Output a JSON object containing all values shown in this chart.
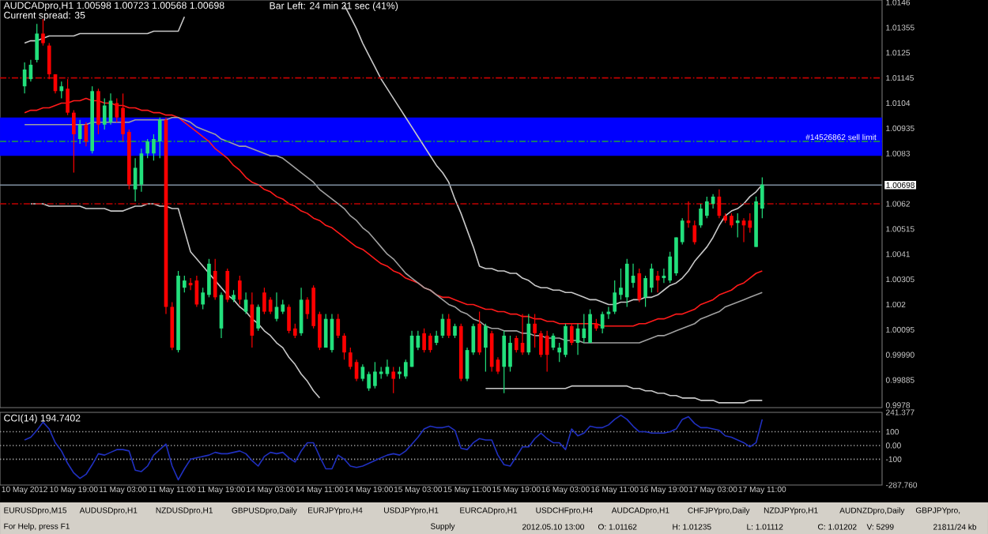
{
  "chart_data": [
    {
      "type": "candlestick",
      "title": "AUDCADpro,H1 1.00598 1.00723 1.00568 1.00698",
      "subtitle": "Current spread: 35",
      "annotations": [
        "Bar Left: 24 min 21 sec (41%)"
      ],
      "tick_labels": "y",
      "ylim": [
        0.9977,
        1.0147
      ],
      "yticks": [
        1.0146,
        1.01355,
        1.0125,
        1.01145,
        1.0104,
        1.00935,
        1.0083,
        1.0062,
        1.00515,
        1.0041,
        1.00305,
        1.002,
        1.00095,
        {
          "value": 0.9999,
          "label": "0.99990"
        },
        0.99885,
        0.9978
      ],
      "ohlc": [
        [
          1.0111,
          1.0121,
          1.0108,
          1.0118
        ],
        [
          1.0114,
          1.0122,
          1.0113,
          1.012
        ],
        [
          1.0122,
          1.0137,
          1.0121,
          1.0133
        ],
        [
          1.0133,
          1.0139,
          1.0128,
          1.0129
        ],
        [
          1.0128,
          1.0129,
          1.0114,
          1.0116
        ],
        [
          1.0116,
          1.0116,
          1.0108,
          1.0109
        ],
        [
          1.0109,
          1.0113,
          1.0106,
          1.0111
        ],
        [
          1.011,
          1.0114,
          1.0099,
          1.01
        ],
        [
          1.01,
          1.0101,
          1.0075,
          1.0091
        ],
        [
          1.0089,
          1.0097,
          1.0087,
          1.0095
        ],
        [
          1.0095,
          1.0096,
          1.0086,
          1.0088
        ],
        [
          1.0084,
          1.0111,
          1.0083,
          1.0109
        ],
        [
          1.0109,
          1.011,
          1.0091,
          1.0095
        ],
        [
          1.0095,
          1.0106,
          1.0093,
          1.0103
        ],
        [
          1.0096,
          1.0108,
          1.0095,
          1.0105
        ],
        [
          1.0104,
          1.0106,
          1.0096,
          1.0098
        ],
        [
          1.0102,
          1.0108,
          1.0088,
          1.0091
        ],
        [
          1.0092,
          1.0093,
          1.0068,
          1.007
        ],
        [
          1.0068,
          1.0081,
          1.0063,
          1.0077
        ],
        [
          1.007,
          1.0085,
          1.0067,
          1.0083
        ],
        [
          1.0083,
          1.0089,
          1.0081,
          1.0088
        ],
        [
          1.0083,
          1.0091,
          1.008,
          1.0089
        ],
        [
          1.0088,
          1.0098,
          1.0081,
          1.0097
        ],
        [
          1.0097,
          1.0098,
          1.0016,
          1.0019
        ],
        [
          1.0019,
          1.0021,
          1.0001,
          1.0002
        ],
        [
          1.0001,
          1.0034,
          1.0,
          1.0032
        ],
        [
          1.0027,
          1.0032,
          1.0025,
          1.003
        ],
        [
          1.0029,
          1.0031,
          1.0026,
          1.0028
        ],
        [
          1.003,
          1.0032,
          1.0019,
          1.002
        ],
        [
          1.002,
          1.0027,
          1.0018,
          1.0025
        ],
        [
          1.0024,
          1.0039,
          1.0023,
          1.0037
        ],
        [
          1.0034,
          1.0039,
          1.0022,
          1.0023
        ],
        [
          1.001,
          1.0025,
          1.0006,
          1.0024
        ],
        [
          1.0034,
          1.0035,
          1.0021,
          1.0022
        ],
        [
          1.0022,
          1.0026,
          1.0021,
          1.0024
        ],
        [
          1.003,
          1.0032,
          1.002,
          1.0022
        ],
        [
          1.0017,
          1.0025,
          1.0016,
          1.0022
        ],
        [
          1.002,
          1.0025,
          1.0002,
          1.0007
        ],
        [
          1.001,
          1.002,
          1.0009,
          1.0019
        ],
        [
          1.0025,
          1.0027,
          1.0016,
          1.0017
        ],
        [
          1.0022,
          1.0023,
          1.0016,
          1.0017
        ],
        [
          1.0014,
          1.0025,
          1.0013,
          1.0019
        ],
        [
          1.0017,
          1.0022,
          1.0016,
          1.002
        ],
        [
          1.0019,
          1.002,
          1.0008,
          1.0009
        ],
        [
          1.001,
          1.0012,
          1.0006,
          1.0007
        ],
        [
          1.0008,
          1.0027,
          1.0007,
          1.0022
        ],
        [
          1.0022,
          1.0023,
          1.0014,
          1.0016
        ],
        [
          1.0027,
          1.0028,
          1.001,
          1.0011
        ],
        [
          1.0016,
          1.0017,
          1.0001,
          1.0002
        ],
        [
          1.0002,
          1.0016,
          1.0002,
          1.0014
        ],
        [
          1.0001,
          1.0016,
          1.0,
          1.0014
        ],
        [
          1.0014,
          1.0016,
          1.0006,
          1.0007
        ],
        [
          1.0007,
          1.0008,
          0.9997,
          1.0
        ],
        [
          1.0,
          1.0002,
          0.9993,
          0.9994
        ],
        [
          0.9996,
          0.9997,
          0.9988,
          0.9989
        ],
        [
          0.9989,
          0.9995,
          0.9988,
          0.9994
        ],
        [
          0.9985,
          0.9992,
          0.9984,
          0.9991
        ],
        [
          0.9986,
          0.9996,
          0.9985,
          0.9992
        ],
        [
          0.9991,
          0.9994,
          0.9989,
          0.9992
        ],
        [
          0.9991,
          0.9997,
          0.999,
          0.9994
        ],
        [
          0.9992,
          0.9994,
          0.9983,
          0.9989
        ],
        [
          0.9991,
          0.9994,
          0.9989,
          0.9992
        ],
        [
          0.999,
          0.9997,
          0.9989,
          0.9996
        ],
        [
          0.9994,
          1.0009,
          0.9994,
          1.0007
        ],
        [
          1.0002,
          1.0009,
          1.0001,
          1.0007
        ],
        [
          1.0008,
          1.001,
          1.0,
          1.0001
        ],
        [
          1.0007,
          1.0008,
          1.0,
          1.0001
        ],
        [
          1.0004,
          1.0009,
          1.0003,
          1.0007
        ],
        [
          1.0007,
          1.0016,
          1.0006,
          1.0014
        ],
        [
          1.0014,
          1.0016,
          1.0006,
          1.0007
        ],
        [
          1.0007,
          1.0012,
          1.0006,
          1.0011
        ],
        [
          1.0011,
          1.0012,
          0.9988,
          0.9989
        ],
        [
          0.9989,
          1.0002,
          0.9988,
          1.0001
        ],
        [
          1.0,
          1.0012,
          0.9999,
          1.0011
        ],
        [
          1.0012,
          1.0017,
          0.9999,
          1.0
        ],
        [
          1.0002,
          1.0012,
          0.9992,
          1.0011
        ],
        [
          1.0008,
          1.0009,
          0.9992,
          0.9994
        ],
        [
          0.9997,
          0.9998,
          0.9991,
          0.9992
        ],
        [
          0.9994,
          1.0009,
          0.9983,
          1.0007
        ],
        [
          0.9994,
          1.0007,
          0.9992,
          1.0004
        ],
        [
          1.0006,
          1.0007,
          1.0,
          1.0001
        ],
        [
          1.0004,
          1.0016,
          0.9999,
          1.0
        ],
        [
          1.0,
          1.0016,
          0.9999,
          1.0012
        ],
        [
          1.0012,
          1.0016,
          1.0002,
          1.0008
        ],
        [
          1.0008,
          1.0009,
          0.9998,
          0.9999
        ],
        [
          1.0007,
          1.0009,
          0.9992,
          0.9999
        ],
        [
          1.0002,
          1.0008,
          1.0001,
          1.0007
        ],
        [
          1.0,
          1.0004,
          0.9996,
          1.0002
        ],
        [
          0.9999,
          1.0012,
          0.9998,
          1.0011
        ],
        [
          1.0011,
          1.0012,
          1.0003,
          1.0004
        ],
        [
          1.0004,
          1.0012,
          0.9999,
          1.001
        ],
        [
          1.0006,
          1.0016,
          1.0004,
          1.001
        ],
        [
          1.0004,
          1.0018,
          1.0004,
          1.0016
        ],
        [
          1.0012,
          1.0014,
          1.0009,
          1.001
        ],
        [
          1.001,
          1.0017,
          1.0008,
          1.0016
        ],
        [
          1.0016,
          1.0019,
          1.0014,
          1.0017
        ],
        [
          1.0017,
          1.003,
          1.0016,
          1.0025
        ],
        [
          1.0024,
          1.0035,
          1.0022,
          1.0027
        ],
        [
          1.0023,
          1.0039,
          1.0019,
          1.0037
        ],
        [
          1.0029,
          1.0037,
          1.0027,
          1.0032
        ],
        [
          1.0033,
          1.0035,
          1.0021,
          1.0022
        ],
        [
          1.0023,
          1.0032,
          1.0019,
          1.0031
        ],
        [
          1.0027,
          1.0037,
          1.0025,
          1.0035
        ],
        [
          1.0032,
          1.0034,
          1.0025,
          1.003
        ],
        [
          1.0031,
          1.0035,
          1.0029,
          1.0032
        ],
        [
          1.003,
          1.0042,
          1.0029,
          1.004
        ],
        [
          1.0033,
          1.0048,
          1.0032,
          1.0048
        ],
        [
          1.0046,
          1.0056,
          1.0045,
          1.0055
        ],
        [
          1.0055,
          1.0063,
          1.0052,
          1.0054
        ],
        [
          1.0053,
          1.0055,
          1.0045,
          1.0046
        ],
        [
          1.0053,
          1.0062,
          1.0052,
          1.006
        ],
        [
          1.0057,
          1.0065,
          1.0056,
          1.0063
        ],
        [
          1.0062,
          1.0066,
          1.006,
          1.0065
        ],
        [
          1.0065,
          1.0068,
          1.0056,
          1.0057
        ],
        [
          1.0057,
          1.0058,
          1.0054,
          1.0055
        ],
        [
          1.0057,
          1.0058,
          1.0052,
          1.0053
        ],
        [
          1.0054,
          1.0058,
          1.0048,
          1.0055
        ],
        [
          1.0055,
          1.0056,
          1.0046,
          1.0053
        ],
        [
          1.0055,
          1.0058,
          1.005,
          1.0052
        ],
        [
          1.0044,
          1.0065,
          1.0044,
          1.0063
        ],
        [
          1.006,
          1.0073,
          1.0056,
          1.007
        ],
        null,
        null,
        null,
        null,
        null,
        null,
        null,
        null,
        null,
        null,
        null,
        null,
        null,
        null,
        null,
        null,
        null,
        null,
        null
      ],
      "series": [
        {
          "type": "line",
          "color": "#ff1a1a",
          "values": [
            1.01,
            1.0101,
            1.0101,
            1.0102,
            1.0102,
            1.0103,
            1.0104,
            1.0104,
            1.0105,
            1.0105,
            1.0106,
            1.0105,
            1.0105,
            1.0104,
            1.0104,
            1.0103,
            1.0103,
            1.0102,
            1.0102,
            1.0101,
            1.0101,
            1.01,
            1.01,
            1.0099,
            1.0099,
            1.0098,
            1.0096,
            1.0094,
            1.0092,
            1.009,
            1.0088,
            1.0085,
            1.0083,
            1.0081,
            1.0078,
            1.0076,
            1.0073,
            1.0071,
            1.007,
            1.0068,
            1.0067,
            1.0065,
            1.0064,
            1.0062,
            1.0061,
            1.0059,
            1.0058,
            1.0056,
            1.0055,
            1.0053,
            1.0052,
            1.005,
            1.0048,
            1.0046,
            1.0044,
            1.0043,
            1.0041,
            1.0039,
            1.0037,
            1.0036,
            1.0034,
            1.0033,
            1.0031,
            1.003,
            1.0029,
            1.0027,
            1.0026,
            1.0024,
            1.0023,
            1.0023,
            1.0022,
            1.0021,
            1.002,
            1.002,
            1.0019,
            1.0018,
            1.0018,
            1.0017,
            1.0017,
            1.0016,
            1.0016,
            1.0015,
            1.0015,
            1.0014,
            1.0014,
            1.0013,
            1.0013,
            1.0012,
            1.0012,
            1.0012,
            1.0012,
            1.0012,
            1.0012,
            1.0012,
            1.0011,
            1.0011,
            1.0011,
            1.0011,
            1.0011,
            1.0011,
            1.0012,
            1.0012,
            1.0013,
            1.0014,
            1.0014,
            1.0015,
            1.0016,
            1.0016,
            1.0017,
            1.0018,
            1.002,
            1.0021,
            1.0022,
            1.0024,
            1.0025,
            1.0026,
            1.0028,
            1.0029,
            1.0031,
            1.0033,
            1.0034,
            null,
            null,
            null,
            null,
            null,
            null,
            null,
            null,
            null,
            null,
            null,
            null,
            null,
            null,
            null,
            null,
            null,
            null,
            null
          ]
        },
        {
          "type": "line",
          "color": "#a0a0a0",
          "values": [
            1.0095,
            1.0095,
            1.0095,
            1.0095,
            1.0095,
            1.0095,
            1.0095,
            1.0095,
            1.0095,
            1.0095,
            1.0095,
            1.0096,
            1.0096,
            1.0096,
            1.0096,
            1.0096,
            1.0096,
            1.0096,
            1.0097,
            1.0097,
            1.0097,
            1.0097,
            1.0097,
            1.0097,
            1.0098,
            1.0098,
            1.0097,
            1.0096,
            1.0094,
            1.0093,
            1.0092,
            1.0091,
            1.0089,
            1.0088,
            1.0087,
            1.0086,
            1.0086,
            1.0085,
            1.0084,
            1.0083,
            1.0082,
            1.0082,
            1.0081,
            1.0079,
            1.0077,
            1.0075,
            1.0073,
            1.0071,
            1.0068,
            1.0066,
            1.0064,
            1.0062,
            1.006,
            1.0057,
            1.0055,
            1.0052,
            1.005,
            1.0047,
            1.0044,
            1.0041,
            1.0039,
            1.0036,
            1.0033,
            1.0031,
            1.0029,
            1.0027,
            1.0026,
            1.0024,
            1.0022,
            1.002,
            1.0019,
            1.0017,
            1.0016,
            1.0014,
            1.0013,
            1.0011,
            1.001,
            1.001,
            1.0009,
            1.0009,
            1.0009,
            1.0008,
            1.0008,
            1.0007,
            1.0007,
            1.0006,
            1.0006,
            1.0006,
            1.0005,
            1.0005,
            1.0005,
            1.0004,
            1.0004,
            1.0004,
            1.0004,
            1.0004,
            1.0004,
            1.0004,
            1.0004,
            1.0004,
            1.0004,
            1.0005,
            1.0006,
            1.0007,
            1.0007,
            1.0008,
            1.0009,
            1.001,
            1.0011,
            1.0012,
            1.0014,
            1.0015,
            1.0016,
            1.0017,
            1.0019,
            1.002,
            1.0021,
            1.0022,
            1.0023,
            1.0024,
            1.0025,
            null,
            null,
            null,
            null,
            null,
            null,
            null,
            null,
            null,
            null,
            null,
            null,
            null,
            null,
            null,
            null,
            null,
            null,
            null
          ]
        },
        {
          "type": "line",
          "color": "#c8c8c8",
          "values": [
            1.0129,
            1.013,
            1.013,
            1.0131,
            1.0132,
            1.0132,
            1.0132,
            1.0132,
            1.0132,
            1.0133,
            1.0133,
            1.0133,
            1.0133,
            1.0133,
            1.0133,
            1.0133,
            1.0133,
            1.0133,
            1.0133,
            1.0133,
            1.0133,
            1.0134,
            1.0134,
            1.0134,
            1.0134,
            1.0134,
            1.014,
            null,
            null,
            null,
            null,
            null,
            null,
            null,
            null,
            null,
            null,
            null,
            null,
            null,
            null,
            null,
            null,
            null,
            null,
            null,
            null,
            null,
            null,
            null,
            null,
            null,
            1.0145,
            1.014,
            1.0135,
            1.0129,
            1.0124,
            1.0119,
            1.0114,
            1.011,
            1.0106,
            1.0102,
            1.0098,
            1.0094,
            1.009,
            1.0086,
            1.0082,
            1.0078,
            1.0075,
            1.0071,
            1.0064,
            1.0058,
            1.0051,
            1.0044,
            1.0036,
            1.0035,
            1.0035,
            1.0034,
            1.0034,
            1.0033,
            1.0033,
            1.0031,
            1.003,
            1.0028,
            1.0027,
            1.0027,
            1.0026,
            1.0026,
            1.0025,
            1.0025,
            1.0024,
            1.0023,
            1.0022,
            1.0022,
            1.0021,
            1.002,
            1.002,
            1.0021,
            1.0021,
            1.0022,
            1.0022,
            1.0023,
            1.0023,
            1.0024,
            1.0026,
            1.0028,
            1.0029,
            1.0031,
            1.0034,
            1.0038,
            1.0041,
            1.0044,
            1.0048,
            1.0053,
            1.0057,
            1.0059,
            1.006,
            1.0062,
            1.0065,
            1.0067,
            1.007,
            null,
            null,
            null,
            null,
            null,
            null,
            null,
            null,
            null,
            null,
            null,
            null,
            null,
            null,
            null,
            null,
            null,
            null,
            null
          ]
        },
        {
          "type": "line",
          "color": "#c8c8c8",
          "values": [
            null,
            1.0062,
            1.0062,
            1.0062,
            1.0061,
            1.0061,
            1.0061,
            1.0061,
            1.0061,
            1.0061,
            1.006,
            1.006,
            1.006,
            1.006,
            1.0059,
            1.0059,
            1.0059,
            1.006,
            1.0061,
            1.0061,
            1.0062,
            1.0062,
            1.0061,
            1.0061,
            1.006,
            1.006,
            1.0051,
            1.0042,
            1.0039,
            1.0036,
            1.0033,
            1.003,
            1.0027,
            1.0024,
            1.0022,
            1.0019,
            1.0017,
            1.0014,
            1.0012,
            1.0009,
            1.0007,
            1.0004,
            1.0002,
            0.9998,
            0.9995,
            0.9991,
            0.9988,
            0.9984,
            0.9981,
            null,
            null,
            null,
            null,
            null,
            null,
            null,
            null,
            null,
            null,
            null,
            null,
            null,
            null,
            null,
            null,
            null,
            null,
            null,
            null,
            null,
            null,
            null,
            null,
            null,
            null,
            0.9985,
            0.9985,
            0.9985,
            0.9985,
            0.9985,
            0.9985,
            0.9985,
            0.9985,
            0.9985,
            0.9985,
            0.9985,
            0.9985,
            0.9985,
            0.9985,
            0.9986,
            0.9986,
            0.9986,
            0.9986,
            0.9986,
            0.9986,
            0.9986,
            0.9986,
            0.9986,
            0.9986,
            0.9985,
            0.9985,
            0.9984,
            0.9984,
            0.9983,
            0.9983,
            0.9982,
            0.9982,
            0.9981,
            0.9981,
            0.9981,
            0.998,
            0.998,
            0.998,
            0.9979,
            0.9979,
            0.9979,
            0.9979,
            0.9979,
            0.998,
            0.998,
            0.998,
            null,
            null,
            null,
            null,
            null,
            null,
            null,
            null,
            null,
            null,
            null,
            null,
            null,
            null,
            null,
            null,
            null,
            null,
            null
          ]
        }
      ],
      "bands": [
        {
          "axis": "y",
          "from": 1.0082,
          "to": 1.0098,
          "color": "#0000ff"
        }
      ],
      "ref_lines": [
        {
          "axis": "y",
          "value": 1.01145,
          "color": "#c00000",
          "line_style": "dashdot"
        },
        {
          "axis": "y",
          "value": 1.0088,
          "color": "#20a040",
          "line_style": "dashdot",
          "label": "#14526862 sell limit"
        },
        {
          "axis": "y",
          "value": 1.00698,
          "color": "#8090a0",
          "line_style": "solid",
          "label": "1.00698"
        },
        {
          "axis": "y",
          "value": 1.0062,
          "color": "#c00000",
          "line_style": "dashdot"
        }
      ]
    },
    {
      "type": "line",
      "title": "CCI(14) 194.7402",
      "ylim": [
        -287.76,
        241.377
      ],
      "yticks": [
        241.377,
        100,
        {
          "value": 0,
          "label": "0.00"
        },
        -100,
        {
          "value": -287.76,
          "label": "-287.760"
        }
      ],
      "categories": [
        "10 May 2012",
        null,
        null,
        null,
        null,
        null,
        null,
        null,
        "10 May 19:00",
        null,
        null,
        null,
        null,
        null,
        null,
        null,
        "11 May 03:00",
        null,
        null,
        null,
        null,
        null,
        null,
        null,
        "11 May 11:00",
        null,
        null,
        null,
        null,
        null,
        null,
        null,
        "11 May 19:00",
        null,
        null,
        null,
        null,
        null,
        null,
        null,
        "14 May 03:00",
        null,
        null,
        null,
        null,
        null,
        null,
        null,
        "14 May 11:00",
        null,
        null,
        null,
        null,
        null,
        null,
        null,
        "14 May 19:00",
        null,
        null,
        null,
        null,
        null,
        null,
        null,
        "15 May 03:00",
        null,
        null,
        null,
        null,
        null,
        null,
        null,
        "15 May 11:00",
        null,
        null,
        null,
        null,
        null,
        null,
        null,
        "15 May 19:00",
        null,
        null,
        null,
        null,
        null,
        null,
        null,
        "16 May 03:00",
        null,
        null,
        null,
        null,
        null,
        null,
        null,
        "16 May 11:00",
        null,
        null,
        null,
        null,
        null,
        null,
        null,
        "16 May 19:00",
        null,
        null,
        null,
        null,
        null,
        null,
        null,
        "17 May 03:00",
        null,
        null,
        null,
        null,
        null,
        null,
        null,
        "17 May 11:00",
        null,
        null,
        null,
        null,
        null,
        null,
        null,
        null,
        null,
        null,
        null,
        null,
        null,
        null,
        null,
        null,
        null,
        null,
        null
      ],
      "series": [
        {
          "color": "#2030c0",
          "values": [
            40,
            60,
            110,
            170,
            120,
            20,
            -40,
            -130,
            -200,
            -240,
            -210,
            -140,
            -60,
            -70,
            -50,
            -30,
            -30,
            -40,
            -180,
            -190,
            -150,
            -70,
            -30,
            10,
            -150,
            -250,
            -170,
            -100,
            -90,
            -80,
            -70,
            -50,
            -60,
            -60,
            -50,
            -40,
            -60,
            -110,
            -150,
            -80,
            -50,
            -60,
            -50,
            -90,
            -120,
            -40,
            20,
            20,
            -80,
            -170,
            -170,
            -70,
            -100,
            -150,
            -160,
            -150,
            -130,
            -110,
            -90,
            -70,
            -60,
            -70,
            -40,
            10,
            60,
            120,
            140,
            130,
            130,
            140,
            110,
            -20,
            -30,
            20,
            50,
            40,
            40,
            -70,
            -140,
            -150,
            -80,
            -10,
            -10,
            50,
            90,
            50,
            20,
            20,
            -30,
            120,
            70,
            90,
            140,
            130,
            130,
            150,
            190,
            220,
            190,
            140,
            100,
            100,
            90,
            90,
            90,
            100,
            120,
            190,
            210,
            160,
            130,
            130,
            120,
            110,
            70,
            60,
            40,
            20,
            -10,
            20,
            190,
            null,
            null,
            null,
            null,
            null,
            null,
            null,
            null,
            null,
            null,
            null,
            null,
            null,
            null,
            null,
            null,
            null,
            null,
            null
          ]
        }
      ],
      "ref_lines": [
        {
          "axis": "y",
          "value": 100,
          "color": "#a0a0a0",
          "line_style": "dotted"
        },
        {
          "axis": "y",
          "value": 0,
          "color": "#a0a0a0",
          "line_style": "dotted"
        },
        {
          "axis": "y",
          "value": -100,
          "color": "#a0a0a0",
          "line_style": "dotted"
        }
      ]
    },
    {
      "type": "other",
      "annotations": [
        "EURUSDpro,M15",
        "AUDUSDpro,H1",
        "NZDUSDpro,H1",
        "GBPUSDpro,Daily",
        "EURJPYpro,H4",
        "USDJPYpro,H1",
        "EURCADpro,H1",
        "USDCHFpro,H4",
        "AUDCADpro,H1",
        "CHFJPYpro,Daily",
        "NZDJPYpro,H1",
        "AUDNZDpro,Daily",
        "GBPJPYpro,"
      ]
    },
    {
      "type": "other",
      "annotations": [
        "For Help, press F1",
        "Supply",
        "2012.05.10 13:00",
        "O: 1.01162",
        "H: 1.01235",
        "L: 1.01112",
        "C: 1.01202",
        "V: 5299",
        "21811/24 kb"
      ]
    }
  ]
}
